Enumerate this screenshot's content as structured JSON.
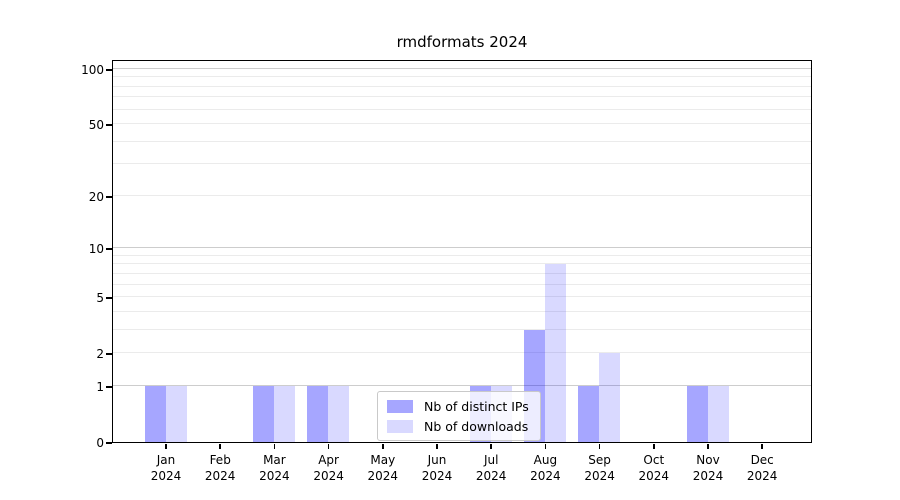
{
  "chart_data": {
    "type": "bar",
    "title": "rmdformats 2024",
    "categories": [
      "Jan",
      "Feb",
      "Mar",
      "Apr",
      "May",
      "Jun",
      "Jul",
      "Aug",
      "Sep",
      "Oct",
      "Nov",
      "Dec"
    ],
    "x_year_label": "2024",
    "series": [
      {
        "name": "Nb of distinct IPs",
        "color": "rgba(0,0,255,0.35)",
        "values": [
          1,
          0,
          1,
          1,
          0,
          0,
          1,
          3,
          1,
          0,
          1,
          0
        ]
      },
      {
        "name": "Nb of downloads",
        "color": "rgba(0,0,255,0.15)",
        "values": [
          1,
          0,
          1,
          1,
          0,
          0,
          1,
          8,
          2,
          0,
          1,
          0
        ]
      }
    ],
    "y_scale": "log1p",
    "ylim": [
      0,
      100
    ],
    "y_ticks": [
      0,
      1,
      2,
      5,
      10,
      20,
      50,
      100
    ],
    "grid_major": [
      1,
      10,
      100
    ],
    "grid_minor": [
      2,
      3,
      4,
      5,
      6,
      7,
      8,
      9,
      20,
      30,
      40,
      50,
      60,
      70,
      80,
      90
    ],
    "legend_position": "inside-bottom-center",
    "colors": {
      "grid_major": "#cdcdcd",
      "grid_minor": "#ebebeb",
      "axis": "#000000",
      "background": "#ffffff"
    }
  }
}
